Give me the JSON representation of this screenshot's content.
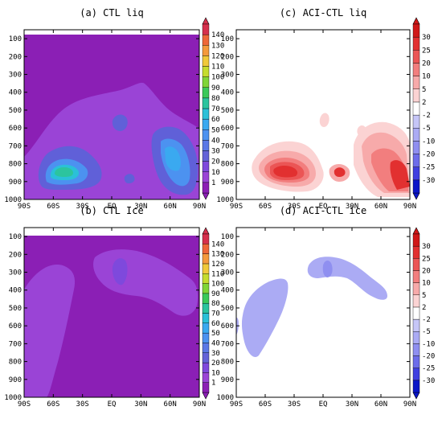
{
  "chart_data": [
    {
      "type": "heatmap",
      "title": "(a) CTL liq",
      "x_ticks": [
        "90S",
        "60S",
        "30S",
        "EQ",
        "30N",
        "60N",
        "90N"
      ],
      "y_ticks": [
        "100",
        "200",
        "300",
        "400",
        "500",
        "600",
        "700",
        "800",
        "900",
        "1000"
      ],
      "xlim": [
        -90,
        90
      ],
      "ylim": [
        1000,
        50
      ],
      "colorbar_ticks": [
        "1",
        "10",
        "20",
        "30",
        "40",
        "50",
        "60",
        "70",
        "80",
        "90",
        "100",
        "110",
        "120",
        "130",
        "140"
      ],
      "colormap": [
        "#8B1FB5",
        "#9A44D6",
        "#7E49DC",
        "#6363D8",
        "#5A78E6",
        "#4C92F0",
        "#3AA9F0",
        "#2BC0D8",
        "#2CC49E",
        "#3BC959",
        "#80D536",
        "#C5DC2D",
        "#F0C93A",
        "#F49A3C",
        "#EE6738",
        "#D6304C"
      ],
      "background_value": "1",
      "annotations": [
        "cloud liquid peak near 50S at 850 hPa",
        "secondary maximum near 60N-80N at 750-850 hPa",
        "small pocket near EQ at 550 hPa"
      ],
      "features": [
        {
          "region": "50S 850hPa",
          "level_range": "20-30"
        },
        {
          "region": "65N-80N 750-900hPa",
          "level_range": "10-20"
        },
        {
          "region": "EQ 550hPa",
          "level_range": "10"
        }
      ]
    },
    {
      "type": "heatmap",
      "title": "(c) ACI-CTL liq",
      "x_ticks": [
        "90S",
        "60S",
        "30S",
        "EQ",
        "30N",
        "60N",
        "90N"
      ],
      "y_ticks": [
        "100",
        "200",
        "300",
        "400",
        "500",
        "600",
        "700",
        "800",
        "900",
        "1000"
      ],
      "xlim": [
        -90,
        90
      ],
      "ylim": [
        1000,
        50
      ],
      "colorbar_ticks": [
        "-30",
        "-25",
        "-20",
        "-10",
        "-5",
        "-2",
        "2",
        "5",
        "10",
        "20",
        "25",
        "30"
      ],
      "colormap": [
        "#0A16C8",
        "#3F3FE0",
        "#6D6DEA",
        "#8F8FF0",
        "#ABABF4",
        "#C6C6F7",
        "#FFFFFF",
        "#FBD3D3",
        "#F7AAAA",
        "#F27E7E",
        "#EB5555",
        "#E23030",
        "#D01818"
      ],
      "annotations": [
        "positive anomalies 70S-20S at 750-950 hPa",
        "positive anomalies 40N-90N at 600-950 hPa"
      ],
      "features": [
        {
          "region": "40S 850hPa",
          "level_range": "25-30"
        },
        {
          "region": "15N 850hPa",
          "level_range": "20-25"
        },
        {
          "region": "80N 850hPa",
          "level_range": "20-25"
        }
      ]
    },
    {
      "type": "heatmap",
      "title": "(b) CTL Ice",
      "x_ticks": [
        "90S",
        "60S",
        "30S",
        "EQ",
        "30N",
        "60N",
        "90N"
      ],
      "y_ticks": [
        "100",
        "200",
        "300",
        "400",
        "500",
        "600",
        "700",
        "800",
        "900",
        "1000"
      ],
      "xlim": [
        -90,
        90
      ],
      "ylim": [
        1000,
        50
      ],
      "colorbar_ticks": [
        "1",
        "10",
        "20",
        "30",
        "40",
        "50",
        "60",
        "70",
        "80",
        "90",
        "100",
        "110",
        "120",
        "130",
        "140"
      ],
      "background_value": "1",
      "features": [
        {
          "region": "EQ-60N 150-450hPa",
          "level_range": "1-10"
        },
        {
          "region": "EQ 250hPa",
          "level_range": "10-20"
        },
        {
          "region": "60S 300-950hPa",
          "level_range": "1-10"
        }
      ]
    },
    {
      "type": "heatmap",
      "title": "(d) ACI-CTL ice",
      "x_ticks": [
        "90S",
        "60S",
        "30S",
        "EQ",
        "30N",
        "60N",
        "90N"
      ],
      "y_ticks": [
        "100",
        "200",
        "300",
        "400",
        "500",
        "600",
        "700",
        "800",
        "900",
        "1000"
      ],
      "xlim": [
        -90,
        90
      ],
      "ylim": [
        1000,
        50
      ],
      "colorbar_ticks": [
        "-30",
        "-25",
        "-20",
        "-10",
        "-5",
        "-2",
        "2",
        "5",
        "10",
        "20",
        "25",
        "30"
      ],
      "features": [
        {
          "region": "65S-40S 300-700hPa",
          "level_range": "-5 to -2"
        },
        {
          "region": "EQ-60N 120-350hPa",
          "level_range": "-5 to -2"
        },
        {
          "region": "EQ 250hPa",
          "level_range": "-10 to -5"
        }
      ]
    }
  ]
}
